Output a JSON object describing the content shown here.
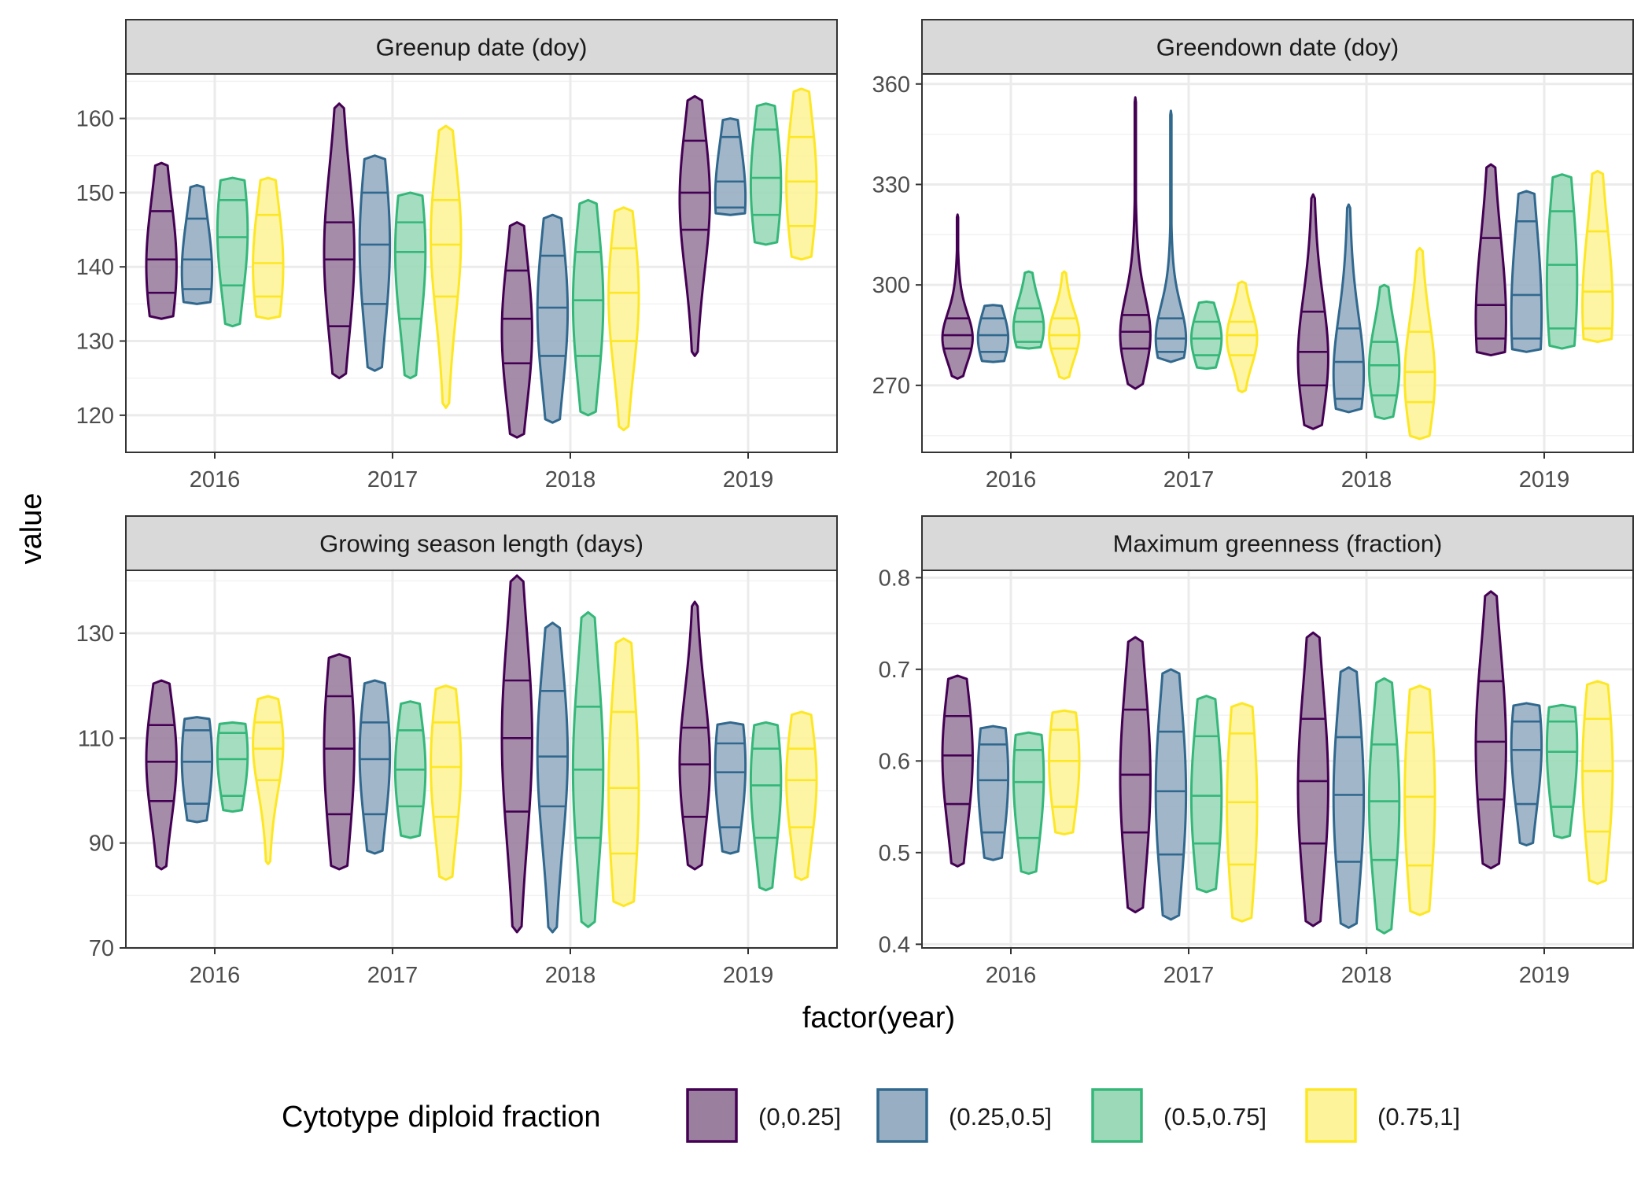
{
  "figure": {
    "xlabel": "factor(year)",
    "ylabel": "value",
    "legend_title": "Cytotype diploid fraction",
    "legend_position": "bottom"
  },
  "groups": [
    {
      "label": "(0,0.25]",
      "color": "#440154",
      "fill": "#9b7f9f"
    },
    {
      "label": "(0.25,0.5]",
      "color": "#31688e",
      "fill": "#98aec3"
    },
    {
      "label": "(0.5,0.75]",
      "color": "#35b779",
      "fill": "#9bd9b9"
    },
    {
      "label": "(0.75,1]",
      "color": "#fde725",
      "fill": "#fdf39a"
    }
  ],
  "chart_data": [
    {
      "type": "violin",
      "title": "Greenup date (doy)",
      "categories": [
        "2016",
        "2017",
        "2018",
        "2019"
      ],
      "ylim": [
        115,
        166
      ],
      "yticks": [
        120,
        130,
        140,
        150,
        160
      ],
      "grid": true,
      "series": [
        {
          "name": "(0,0.25]",
          "values": [
            {
              "min": 133,
              "max": 154,
              "q1": 136.5,
              "median": 141,
              "q3": 147.5,
              "mode": 140
            },
            {
              "min": 125,
              "max": 162,
              "q1": 132,
              "median": 141,
              "q3": 146,
              "mode": 142
            },
            {
              "min": 117,
              "max": 146,
              "q1": 127,
              "median": 133,
              "q3": 139.5,
              "mode": 131
            },
            {
              "min": 128,
              "max": 163,
              "q1": 145,
              "median": 150,
              "q3": 157,
              "mode": 149
            }
          ]
        },
        {
          "name": "(0.25,0.5]",
          "values": [
            {
              "min": 135,
              "max": 151,
              "q1": 137,
              "median": 141,
              "q3": 146.5,
              "mode": 139
            },
            {
              "min": 126,
              "max": 155,
              "q1": 135,
              "median": 143,
              "q3": 150,
              "mode": 143
            },
            {
              "min": 119,
              "max": 147,
              "q1": 128,
              "median": 134.5,
              "q3": 141.5,
              "mode": 134
            },
            {
              "min": 147,
              "max": 160,
              "q1": 148,
              "median": 151.5,
              "q3": 157.5,
              "mode": 149
            }
          ]
        },
        {
          "name": "(0.5,0.75]",
          "values": [
            {
              "min": 132,
              "max": 152,
              "q1": 137.5,
              "median": 144,
              "q3": 149,
              "mode": 145
            },
            {
              "min": 125,
              "max": 150,
              "q1": 133,
              "median": 142,
              "q3": 146,
              "mode": 142
            },
            {
              "min": 120,
              "max": 149,
              "q1": 128,
              "median": 135.5,
              "q3": 142,
              "mode": 135
            },
            {
              "min": 143,
              "max": 162,
              "q1": 147,
              "median": 152,
              "q3": 158.5,
              "mode": 151
            }
          ]
        },
        {
          "name": "(0.75,1]",
          "values": [
            {
              "min": 133,
              "max": 152,
              "q1": 136,
              "median": 140.5,
              "q3": 147,
              "mode": 140
            },
            {
              "min": 121,
              "max": 159,
              "q1": 136,
              "median": 143,
              "q3": 149,
              "mode": 144
            },
            {
              "min": 118,
              "max": 148,
              "q1": 130,
              "median": 136.5,
              "q3": 142.5,
              "mode": 136
            },
            {
              "min": 141,
              "max": 164,
              "q1": 145.5,
              "median": 151.5,
              "q3": 157.5,
              "mode": 151
            }
          ]
        }
      ]
    },
    {
      "type": "violin",
      "title": "Greendown date (doy)",
      "categories": [
        "2016",
        "2017",
        "2018",
        "2019"
      ],
      "ylim": [
        250,
        363
      ],
      "yticks": [
        270,
        300,
        330,
        360
      ],
      "grid": true,
      "series": [
        {
          "name": "(0,0.25]",
          "values": [
            {
              "min": 272,
              "max": 321,
              "q1": 281,
              "median": 285,
              "q3": 290,
              "mode": 284
            },
            {
              "min": 269,
              "max": 356,
              "q1": 281,
              "median": 286,
              "q3": 291,
              "mode": 285
            },
            {
              "min": 257,
              "max": 327,
              "q1": 270,
              "median": 280,
              "q3": 292,
              "mode": 278
            },
            {
              "min": 279,
              "max": 336,
              "q1": 284,
              "median": 294,
              "q3": 314,
              "mode": 289
            }
          ]
        },
        {
          "name": "(0.25,0.5]",
          "values": [
            {
              "min": 277,
              "max": 294,
              "q1": 280,
              "median": 285,
              "q3": 290,
              "mode": 284
            },
            {
              "min": 277,
              "max": 352,
              "q1": 280,
              "median": 284,
              "q3": 290,
              "mode": 284
            },
            {
              "min": 262,
              "max": 324,
              "q1": 266,
              "median": 277,
              "q3": 287,
              "mode": 273
            },
            {
              "min": 280,
              "max": 328,
              "q1": 284,
              "median": 297,
              "q3": 319,
              "mode": 290
            }
          ]
        },
        {
          "name": "(0.5,0.75]",
          "values": [
            {
              "min": 281,
              "max": 304,
              "q1": 283,
              "median": 289,
              "q3": 293,
              "mode": 287
            },
            {
              "min": 275,
              "max": 295,
              "q1": 279,
              "median": 284,
              "q3": 289,
              "mode": 284
            },
            {
              "min": 260,
              "max": 300,
              "q1": 267,
              "median": 276,
              "q3": 283,
              "mode": 275
            },
            {
              "min": 281,
              "max": 333,
              "q1": 287,
              "median": 306,
              "q3": 322,
              "mode": 300
            }
          ]
        },
        {
          "name": "(0.75,1]",
          "values": [
            {
              "min": 272,
              "max": 304,
              "q1": 281,
              "median": 285,
              "q3": 290,
              "mode": 285
            },
            {
              "min": 268,
              "max": 301,
              "q1": 279,
              "median": 285,
              "q3": 289,
              "mode": 284
            },
            {
              "min": 254,
              "max": 311,
              "q1": 265,
              "median": 274,
              "q3": 286,
              "mode": 272
            },
            {
              "min": 283,
              "max": 334,
              "q1": 287,
              "median": 298,
              "q3": 316,
              "mode": 293
            }
          ]
        }
      ]
    },
    {
      "type": "violin",
      "title": "Growing season length (days)",
      "categories": [
        "2016",
        "2017",
        "2018",
        "2019"
      ],
      "ylim": [
        70,
        142
      ],
      "yticks": [
        70,
        90,
        110,
        130
      ],
      "grid": true,
      "series": [
        {
          "name": "(0,0.25]",
          "values": [
            {
              "min": 85,
              "max": 121,
              "q1": 98,
              "median": 105.5,
              "q3": 112.5,
              "mode": 106
            },
            {
              "min": 85,
              "max": 126,
              "q1": 95.5,
              "median": 108,
              "q3": 118,
              "mode": 108
            },
            {
              "min": 73,
              "max": 141,
              "q1": 96,
              "median": 110,
              "q3": 121,
              "mode": 110
            },
            {
              "min": 85,
              "max": 136,
              "q1": 95,
              "median": 105,
              "q3": 112,
              "mode": 105
            }
          ]
        },
        {
          "name": "(0.25,0.5]",
          "values": [
            {
              "min": 94,
              "max": 114,
              "q1": 97.5,
              "median": 105.5,
              "q3": 111.5,
              "mode": 106
            },
            {
              "min": 88,
              "max": 121,
              "q1": 95.5,
              "median": 106,
              "q3": 113,
              "mode": 107
            },
            {
              "min": 73,
              "max": 132,
              "q1": 97,
              "median": 106.5,
              "q3": 119,
              "mode": 107
            },
            {
              "min": 88,
              "max": 113,
              "q1": 93,
              "median": 103.5,
              "q3": 109,
              "mode": 105
            }
          ]
        },
        {
          "name": "(0.5,0.75]",
          "values": [
            {
              "min": 96,
              "max": 113,
              "q1": 99,
              "median": 106,
              "q3": 111,
              "mode": 107
            },
            {
              "min": 91,
              "max": 117,
              "q1": 97,
              "median": 104,
              "q3": 111.5,
              "mode": 104
            },
            {
              "min": 74,
              "max": 134,
              "q1": 91,
              "median": 104,
              "q3": 116,
              "mode": 104
            },
            {
              "min": 81,
              "max": 113,
              "q1": 91,
              "median": 101,
              "q3": 108,
              "mode": 102
            }
          ]
        },
        {
          "name": "(0.75,1]",
          "values": [
            {
              "min": 86,
              "max": 118,
              "q1": 102,
              "median": 108,
              "q3": 113,
              "mode": 109
            },
            {
              "min": 83,
              "max": 120,
              "q1": 95,
              "median": 104.5,
              "q3": 113,
              "mode": 105
            },
            {
              "min": 78,
              "max": 129,
              "q1": 88,
              "median": 100.5,
              "q3": 115,
              "mode": 100
            },
            {
              "min": 83,
              "max": 115,
              "q1": 93,
              "median": 102,
              "q3": 108,
              "mode": 102
            }
          ]
        }
      ]
    },
    {
      "type": "violin",
      "title": "Maximum greenness (fraction)",
      "categories": [
        "2016",
        "2017",
        "2018",
        "2019"
      ],
      "ylim": [
        0.396,
        0.808
      ],
      "yticks": [
        0.4,
        0.5,
        0.6,
        0.7,
        0.8
      ],
      "grid": true,
      "series": [
        {
          "name": "(0,0.25]",
          "values": [
            {
              "min": 0.485,
              "max": 0.693,
              "q1": 0.553,
              "median": 0.606,
              "q3": 0.649,
              "mode": 0.605
            },
            {
              "min": 0.435,
              "max": 0.735,
              "q1": 0.522,
              "median": 0.585,
              "q3": 0.656,
              "mode": 0.58
            },
            {
              "min": 0.42,
              "max": 0.74,
              "q1": 0.51,
              "median": 0.578,
              "q3": 0.646,
              "mode": 0.57
            },
            {
              "min": 0.483,
              "max": 0.785,
              "q1": 0.558,
              "median": 0.621,
              "q3": 0.687,
              "mode": 0.615
            }
          ]
        },
        {
          "name": "(0.25,0.5]",
          "values": [
            {
              "min": 0.492,
              "max": 0.638,
              "q1": 0.522,
              "median": 0.579,
              "q3": 0.618,
              "mode": 0.585
            },
            {
              "min": 0.427,
              "max": 0.7,
              "q1": 0.498,
              "median": 0.567,
              "q3": 0.632,
              "mode": 0.565
            },
            {
              "min": 0.418,
              "max": 0.702,
              "q1": 0.49,
              "median": 0.563,
              "q3": 0.626,
              "mode": 0.56
            },
            {
              "min": 0.508,
              "max": 0.663,
              "q1": 0.553,
              "median": 0.612,
              "q3": 0.643,
              "mode": 0.618
            }
          ]
        },
        {
          "name": "(0.5,0.75]",
          "values": [
            {
              "min": 0.477,
              "max": 0.631,
              "q1": 0.516,
              "median": 0.577,
              "q3": 0.612,
              "mode": 0.583
            },
            {
              "min": 0.457,
              "max": 0.671,
              "q1": 0.51,
              "median": 0.562,
              "q3": 0.627,
              "mode": 0.56
            },
            {
              "min": 0.412,
              "max": 0.69,
              "q1": 0.492,
              "median": 0.556,
              "q3": 0.618,
              "mode": 0.555
            },
            {
              "min": 0.516,
              "max": 0.661,
              "q1": 0.55,
              "median": 0.61,
              "q3": 0.643,
              "mode": 0.615
            }
          ]
        },
        {
          "name": "(0.75,1]",
          "values": [
            {
              "min": 0.52,
              "max": 0.655,
              "q1": 0.55,
              "median": 0.6,
              "q3": 0.634,
              "mode": 0.6
            },
            {
              "min": 0.425,
              "max": 0.663,
              "q1": 0.487,
              "median": 0.555,
              "q3": 0.63,
              "mode": 0.55
            },
            {
              "min": 0.432,
              "max": 0.682,
              "q1": 0.486,
              "median": 0.561,
              "q3": 0.631,
              "mode": 0.56
            },
            {
              "min": 0.466,
              "max": 0.687,
              "q1": 0.523,
              "median": 0.589,
              "q3": 0.646,
              "mode": 0.59
            }
          ]
        }
      ]
    }
  ]
}
